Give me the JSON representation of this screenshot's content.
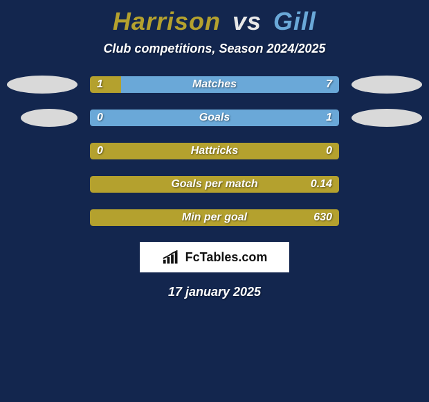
{
  "title": {
    "player1": "Harrison",
    "vs": "vs",
    "player2": "Gill"
  },
  "title_colors": {
    "p1": "#b4a12e",
    "vs": "#e8e8e8",
    "p2": "#6aa8d8"
  },
  "subtitle": "Club competitions, Season 2024/2025",
  "background_color": "#13264e",
  "bar_colors": {
    "p1": "#b4a12e",
    "p2": "#6aa8d8"
  },
  "label_fontsize": 16,
  "rows": [
    {
      "label": "Matches",
      "v1": "1",
      "v2": "7",
      "pct1": 12.5,
      "show_badges": true
    },
    {
      "label": "Goals",
      "v1": "0",
      "v2": "1",
      "pct1": 0,
      "show_badges": true
    },
    {
      "label": "Hattricks",
      "v1": "0",
      "v2": "0",
      "pct1": 100,
      "show_badges": false
    },
    {
      "label": "Goals per match",
      "v1": "",
      "v2": "0.14",
      "pct1": 100,
      "show_badges": false
    },
    {
      "label": "Min per goal",
      "v1": "",
      "v2": "630",
      "pct1": 100,
      "show_badges": false
    }
  ],
  "logo": {
    "text_a": "Fc",
    "text_b": "Tables.com"
  },
  "date": "17 january 2025"
}
